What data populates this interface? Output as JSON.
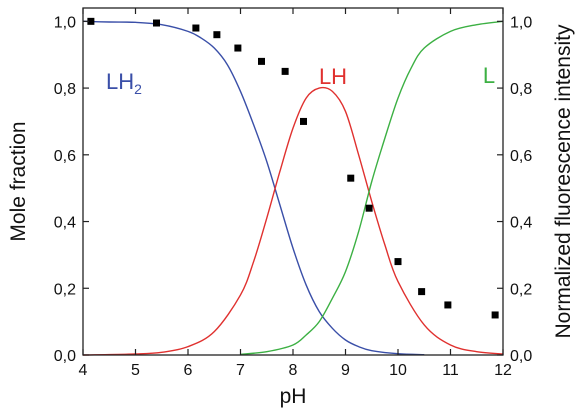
{
  "chart_data": {
    "type": "line",
    "xlabel": "pH",
    "ylabel_left": "Mole fraction",
    "ylabel_right": "Normalized fluorescence intensity",
    "xlim": [
      4,
      12
    ],
    "ylim": [
      0,
      1.04
    ],
    "x_ticks": [
      4,
      5,
      6,
      7,
      8,
      9,
      10,
      11,
      12
    ],
    "x_tick_labels": [
      "4",
      "5",
      "6",
      "7",
      "8",
      "9",
      "10",
      "11",
      "12"
    ],
    "y_ticks": [
      0,
      0.2,
      0.4,
      0.6,
      0.8,
      1.0
    ],
    "y_tick_labels": [
      "0,0",
      "0,2",
      "0,4",
      "0,6",
      "0,8",
      "1,0"
    ],
    "grid": false,
    "series": [
      {
        "name": "LH2",
        "label_main": "LH",
        "label_sub": "2",
        "kind": "line",
        "color": "#3a4fa8",
        "x": [
          4.0,
          4.5,
          5.0,
          5.5,
          6.0,
          6.25,
          6.5,
          6.75,
          7.0,
          7.25,
          7.5,
          7.75,
          8.0,
          8.25,
          8.5,
          8.75,
          9.0,
          9.25,
          9.5,
          10.0,
          10.5
        ],
        "y": [
          1.0,
          0.998,
          0.997,
          0.99,
          0.97,
          0.95,
          0.92,
          0.87,
          0.79,
          0.69,
          0.58,
          0.45,
          0.32,
          0.21,
          0.13,
          0.08,
          0.045,
          0.025,
          0.013,
          0.004,
          0.001
        ]
      },
      {
        "name": "LH",
        "label_main": "LH",
        "label_sub": "",
        "kind": "line",
        "color": "#e0312f",
        "x": [
          4.0,
          5.0,
          5.5,
          6.0,
          6.5,
          7.0,
          7.25,
          7.5,
          7.75,
          8.0,
          8.25,
          8.5,
          8.75,
          9.0,
          9.25,
          9.5,
          9.75,
          10.0,
          10.5,
          11.0,
          11.5,
          12.0
        ],
        "y": [
          0.0,
          0.003,
          0.008,
          0.025,
          0.07,
          0.18,
          0.28,
          0.41,
          0.55,
          0.68,
          0.77,
          0.8,
          0.79,
          0.73,
          0.6,
          0.46,
          0.33,
          0.22,
          0.09,
          0.03,
          0.01,
          0.003
        ]
      },
      {
        "name": "L",
        "label_main": "L",
        "label_sub": "",
        "kind": "line",
        "color": "#3cb043",
        "x": [
          7.0,
          7.5,
          8.0,
          8.25,
          8.5,
          8.75,
          9.0,
          9.25,
          9.5,
          9.75,
          10.0,
          10.25,
          10.5,
          11.0,
          11.5,
          12.0
        ],
        "y": [
          0.002,
          0.01,
          0.03,
          0.06,
          0.1,
          0.17,
          0.25,
          0.37,
          0.52,
          0.65,
          0.77,
          0.86,
          0.92,
          0.97,
          0.99,
          1.0
        ]
      },
      {
        "name": "",
        "kind": "scatter",
        "color": "#000000",
        "x": [
          4.15,
          5.4,
          6.15,
          6.55,
          6.95,
          7.4,
          7.85,
          8.2,
          9.1,
          9.45,
          10.0,
          10.45,
          10.95,
          11.85
        ],
        "y": [
          1.0,
          0.995,
          0.98,
          0.96,
          0.92,
          0.88,
          0.85,
          0.7,
          0.53,
          0.44,
          0.28,
          0.19,
          0.15,
          0.12
        ]
      }
    ]
  }
}
